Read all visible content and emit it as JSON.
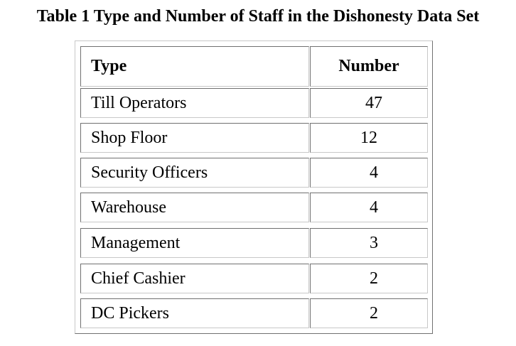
{
  "caption": "Table 1 Type and Number of Staff in the Dishonesty Data Set",
  "table": {
    "headers": {
      "type": "Type",
      "number": "Number"
    },
    "rows": [
      {
        "type": "Till Operators",
        "number": "47"
      },
      {
        "type": "Shop Floor",
        "number": "12"
      },
      {
        "type": "Security Officers",
        "number": "4"
      },
      {
        "type": "Warehouse",
        "number": "4"
      },
      {
        "type": "Management",
        "number": "3"
      },
      {
        "type": "Chief Cashier",
        "number": "2"
      },
      {
        "type": "DC Pickers",
        "number": "2"
      }
    ]
  }
}
